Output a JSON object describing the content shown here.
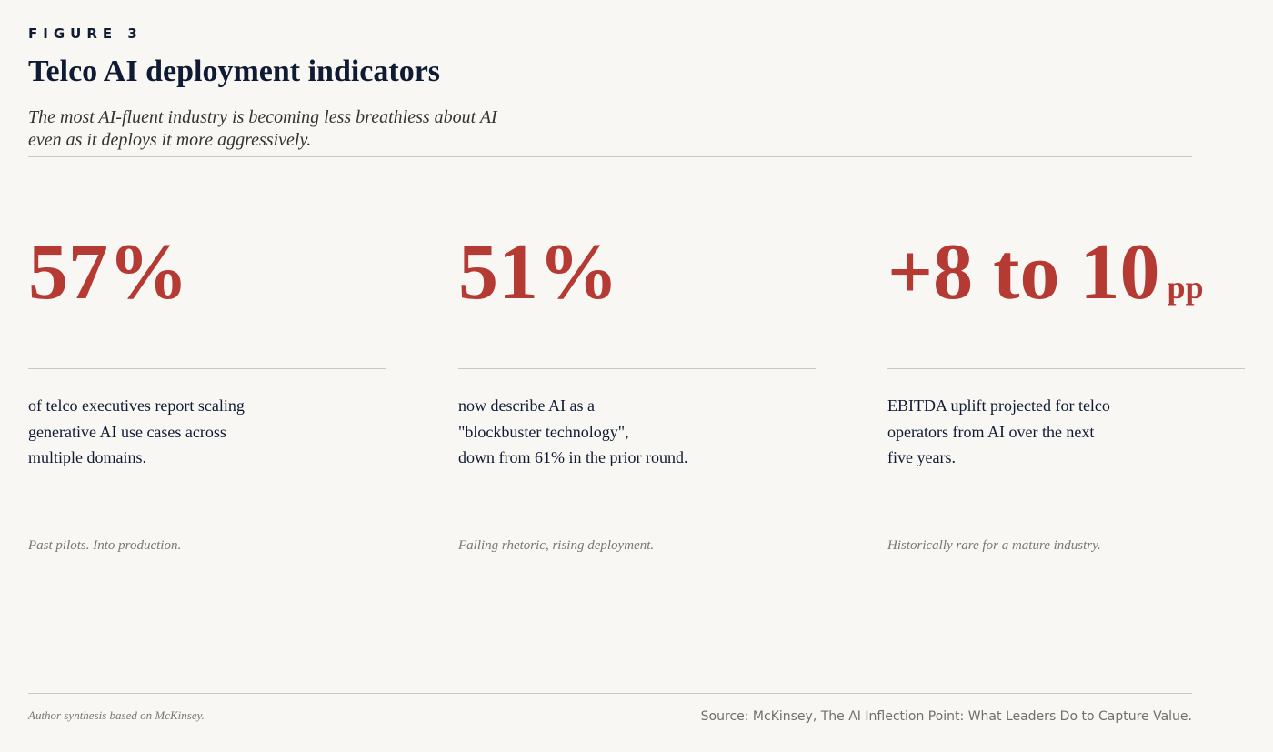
{
  "header": {
    "label": "FIGURE 3",
    "title": "Telco AI deployment indicators",
    "subtitle_lines": [
      "The most AI-fluent industry is becoming less breathless about AI",
      "even as it deploys it more aggressively."
    ]
  },
  "cards": [
    {
      "stat": "57%",
      "description_lines": [
        "of telco executives report scaling",
        "generative AI use cases across",
        "multiple domains."
      ],
      "note": "Past pilots. Into production."
    },
    {
      "stat": "51%",
      "description_lines": [
        "now describe AI as a",
        "\"blockbuster technology\",",
        "down from 61% in the prior round."
      ],
      "note": "Falling rhetoric, rising deployment."
    },
    {
      "stat": "+8 to 10",
      "unit": "pp",
      "description_lines": [
        "EBITDA uplift projected for telco",
        "operators from AI over the next",
        "five years."
      ],
      "note": "Historically rare for a mature industry."
    }
  ],
  "footer": {
    "left": "Author synthesis based on McKinsey.",
    "right": "Source: McKinsey, The AI Inflection Point: What Leaders Do to Capture Value."
  }
}
